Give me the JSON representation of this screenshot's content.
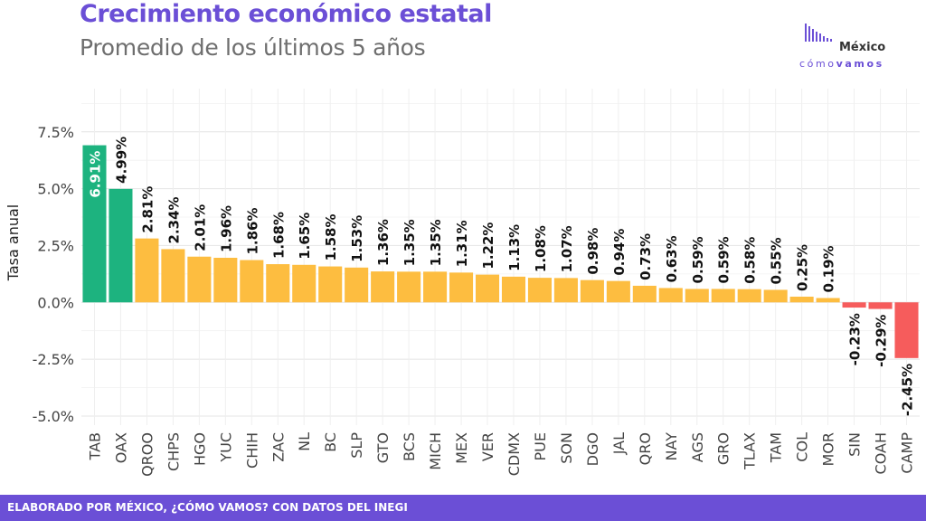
{
  "header": {
    "title": "Crecimiento económico estatal",
    "subtitle": "Promedio de los últimos 5 años"
  },
  "logo": {
    "line1": "México",
    "line2_light": "cómo",
    "line2_bold": "vamos",
    "bars_color": "#6b4fd6"
  },
  "footer": {
    "text": "ELABORADO POR MÉXICO, ¿CÓMO VAMOS? CON DATOS DEL INEGI",
    "background": "#6b4fd6"
  },
  "chart_data": {
    "type": "bar",
    "title": "Crecimiento económico estatal",
    "subtitle": "Promedio de los últimos 5 años",
    "xlabel": "",
    "ylabel": "Tasa anual",
    "ylim": [
      -5.4,
      9.4
    ],
    "yticks": [
      -5.0,
      -2.5,
      0.0,
      2.5,
      5.0,
      7.5
    ],
    "ytick_labels": [
      "-5.0%",
      "-2.5%",
      "0.0%",
      "2.5%",
      "5.0%",
      "7.5%"
    ],
    "grid": true,
    "legend": "none",
    "categories": [
      "TAB",
      "OAX",
      "QROO",
      "CHPS",
      "HGO",
      "YUC",
      "CHIH",
      "ZAC",
      "NL",
      "BC",
      "SLP",
      "GTO",
      "BCS",
      "MICH",
      "MEX",
      "VER",
      "CDMX",
      "PUE",
      "SON",
      "DGO",
      "JAL",
      "QRO",
      "NAY",
      "AGS",
      "GRO",
      "TLAX",
      "TAM",
      "COL",
      "MOR",
      "SIN",
      "COAH",
      "CAMP"
    ],
    "values": [
      6.91,
      4.99,
      2.81,
      2.34,
      2.01,
      1.96,
      1.86,
      1.68,
      1.65,
      1.58,
      1.53,
      1.36,
      1.35,
      1.35,
      1.31,
      1.22,
      1.13,
      1.08,
      1.07,
      0.98,
      0.94,
      0.73,
      0.63,
      0.59,
      0.59,
      0.58,
      0.55,
      0.25,
      0.19,
      -0.23,
      -0.29,
      -2.45
    ],
    "labels": [
      "6.91%",
      "4.99%",
      "2.81%",
      "2.34%",
      "2.01%",
      "1.96%",
      "1.86%",
      "1.68%",
      "1.65%",
      "1.58%",
      "1.53%",
      "1.36%",
      "1.35%",
      "1.35%",
      "1.31%",
      "1.22%",
      "1.13%",
      "1.08%",
      "1.07%",
      "0.98%",
      "0.94%",
      "0.73%",
      "0.63%",
      "0.59%",
      "0.59%",
      "0.58%",
      "0.55%",
      "0.25%",
      "0.19%",
      "-0.23%",
      "-0.29%",
      "-2.45%"
    ],
    "bar_colors": {
      "high": "#1db37f",
      "medium": "#fdbd40",
      "negative": "#f65c5c"
    },
    "category_groups": [
      "high",
      "high",
      "medium",
      "medium",
      "medium",
      "medium",
      "medium",
      "medium",
      "medium",
      "medium",
      "medium",
      "medium",
      "medium",
      "medium",
      "medium",
      "medium",
      "medium",
      "medium",
      "medium",
      "medium",
      "medium",
      "medium",
      "medium",
      "medium",
      "medium",
      "medium",
      "medium",
      "medium",
      "medium",
      "negative",
      "negative",
      "negative"
    ]
  }
}
